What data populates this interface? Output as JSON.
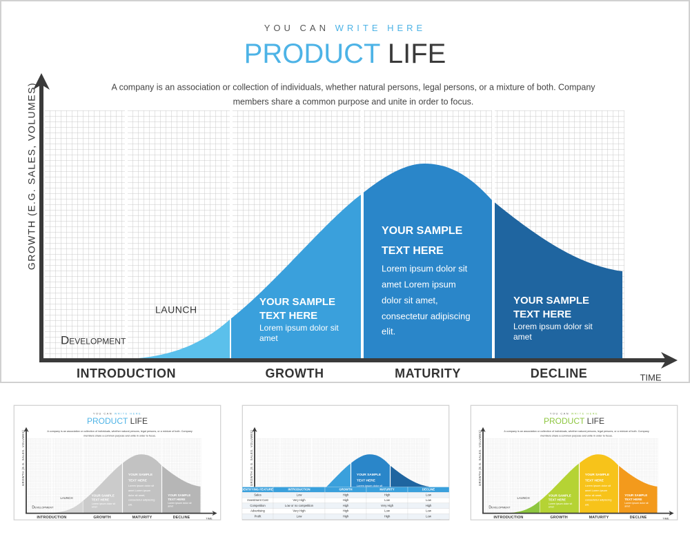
{
  "header": {
    "tagline": [
      "YOU CAN",
      "WRITE HERE"
    ],
    "title": [
      "PRODUCT",
      "LIFE"
    ],
    "description": [
      "A company is an association or collection of individuals, whether natural persons, legal persons, or a mixture of both. Company",
      "members share a common purpose and unite in order to focus."
    ]
  },
  "axes": {
    "y_label": "GROWTH (E.G. SALES, VOLUMES)",
    "x_label": "TIME"
  },
  "labels": {
    "development": "Development",
    "launch": "LAUNCH"
  },
  "stages": [
    "INTRODUCTION",
    "GROWTH",
    "MATURITY",
    "DECLINE"
  ],
  "sections": [
    {
      "heading": [
        "YOUR  SAMPLE",
        "TEXT HERE"
      ],
      "body": [
        "Lorem ipsum dolor sit",
        "amet"
      ]
    },
    {
      "heading": [
        "YOUR  SAMPLE",
        "TEXT HERE"
      ],
      "body": [
        "Lorem ipsum dolor sit",
        "amet Lorem ipsum",
        "dolor sit amet,",
        "consectetur adipiscing",
        "elit."
      ]
    },
    {
      "heading": [
        "YOUR  SAMPLE",
        "TEXT HERE"
      ],
      "body": [
        "Lorem ipsum dolor sit",
        "amet"
      ]
    }
  ],
  "table": {
    "header": [
      "IDENTIFYING FEATURES",
      "INTRODUCTION",
      "GROWTH",
      "MATURITY",
      "DECLINE"
    ],
    "rows": [
      [
        "Sales",
        "Low",
        "High",
        "High",
        "Low"
      ],
      [
        "Investment Cost",
        "Very High",
        "High",
        "Low",
        "Low"
      ],
      [
        "Competition",
        "Low or no competition",
        "High",
        "Very High",
        "High"
      ],
      [
        "Advertising",
        "Very High",
        "High",
        "Low",
        "Low"
      ],
      [
        "Profit",
        "Low",
        "High",
        "High",
        "Low"
      ]
    ]
  }
}
